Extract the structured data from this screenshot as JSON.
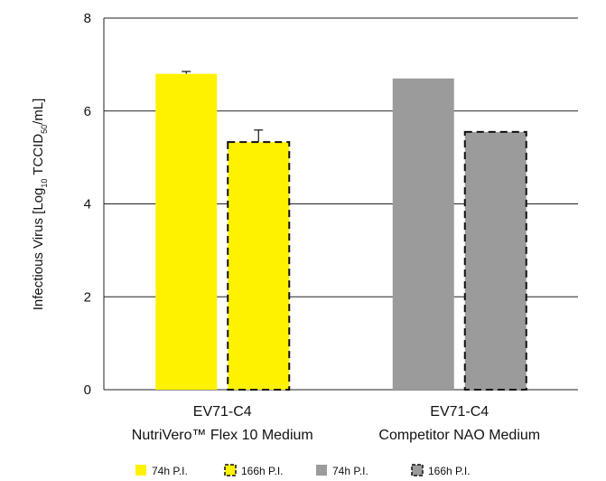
{
  "chart_data": {
    "type": "bar",
    "ylabel": "Infectious Virus [Log10 TCCID50/mL]",
    "ylabel_parts": {
      "a": "Infectious Virus [Log",
      "sub1": "10",
      "b": " TCCID",
      "sub2": "50",
      "c": "/mL]"
    },
    "ylim": [
      0,
      8
    ],
    "yticks": [
      "0",
      "2",
      "4",
      "6",
      "8"
    ],
    "grid": true,
    "legend_position": "bottom",
    "categories": [
      {
        "line1": "EV71-C4",
        "line2": "NutriVero™ Flex 10 Medium"
      },
      {
        "line1": "EV71-C4",
        "line2": "Competitor NAO Medium"
      }
    ],
    "series": [
      {
        "name": "74h P.I.",
        "color": "#fff200",
        "dashed": false,
        "values": [
          6.8,
          null
        ],
        "errors": [
          0.05,
          null
        ]
      },
      {
        "name": "166h P.I.",
        "color": "#fff200",
        "dashed": true,
        "values": [
          5.33,
          null
        ],
        "errors": [
          0.26,
          null
        ]
      },
      {
        "name": "74h P.I.",
        "color": "#9b9b9b",
        "dashed": false,
        "values": [
          null,
          6.7
        ],
        "errors": [
          null,
          null
        ]
      },
      {
        "name": "166h P.I.",
        "color": "#9b9b9b",
        "dashed": true,
        "values": [
          null,
          5.55
        ],
        "errors": [
          null,
          null
        ]
      }
    ]
  }
}
